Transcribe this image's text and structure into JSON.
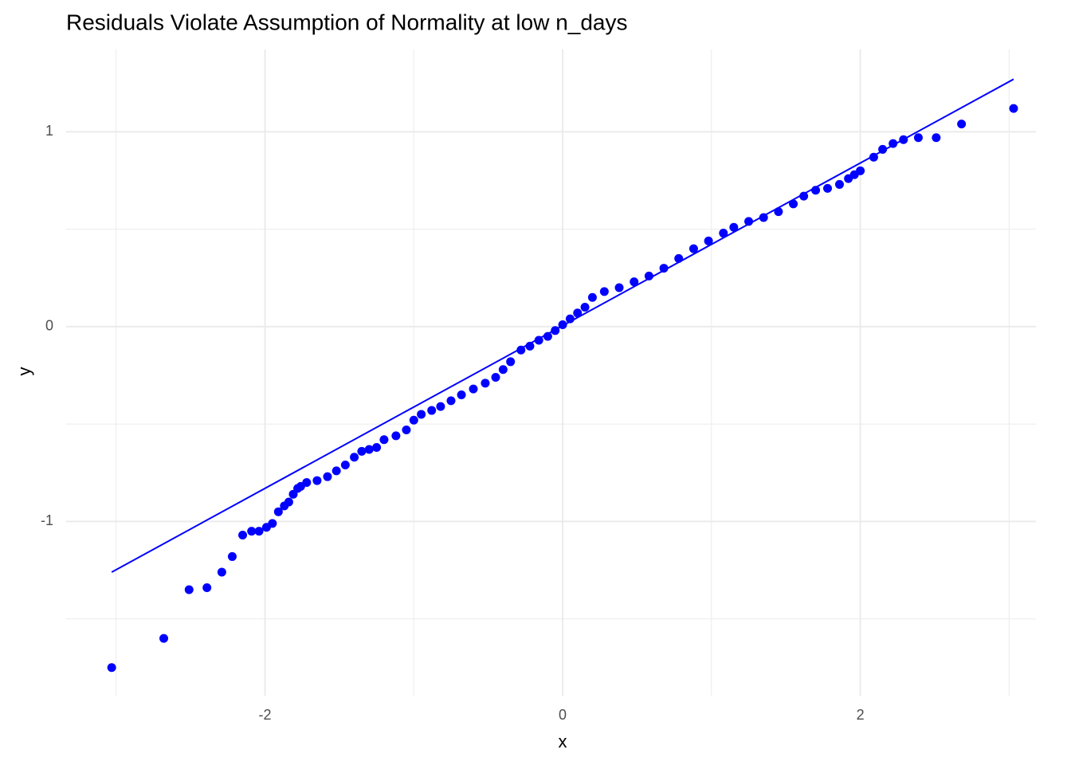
{
  "chart_data": {
    "type": "scatter",
    "title": "Residuals Violate Assumption of Normality at low n_days",
    "x_label": "x",
    "y_label": "y",
    "xlim": [
      -3.336,
      3.18
    ],
    "ylim": [
      -1.894,
      1.423
    ],
    "xticks": [
      -2,
      0,
      2
    ],
    "yticks": [
      -1,
      0,
      1
    ],
    "x_minor_ticks": [
      -3,
      -1,
      1,
      3
    ],
    "y_minor_ticks": [
      -1.5,
      -0.5,
      0.5
    ],
    "grid": true,
    "series": [
      {
        "type": "scatter",
        "color": "#0000ff",
        "x": [
          -3.03,
          -2.68,
          -2.51,
          -2.39,
          -2.29,
          -2.22,
          -2.15,
          -2.09,
          -2.04,
          -1.99,
          -1.95,
          -1.91,
          -1.87,
          -1.84,
          -1.81,
          -1.78,
          -1.76,
          -1.72,
          -1.65,
          -1.58,
          -1.52,
          -1.46,
          -1.4,
          -1.35,
          -1.3,
          -1.25,
          -1.2,
          -1.12,
          -1.05,
          -1.0,
          -0.95,
          -0.88,
          -0.82,
          -0.75,
          -0.68,
          -0.6,
          -0.52,
          -0.45,
          -0.4,
          -0.35,
          -0.28,
          -0.22,
          -0.16,
          -0.1,
          -0.05,
          0,
          0.05,
          0.1,
          0.15,
          0.2,
          0.28,
          0.38,
          0.48,
          0.58,
          0.68,
          0.78,
          0.88,
          0.98,
          1.08,
          1.15,
          1.25,
          1.35,
          1.45,
          1.55,
          1.62,
          1.7,
          1.78,
          1.86,
          1.92,
          1.96,
          2.0,
          2.09,
          2.15,
          2.22,
          2.29,
          2.39,
          2.51,
          2.68,
          3.03
        ],
        "values": [
          -1.75,
          -1.6,
          -1.35,
          -1.34,
          -1.26,
          -1.18,
          -1.07,
          -1.05,
          -1.05,
          -1.03,
          -1.01,
          -0.95,
          -0.92,
          -0.9,
          -0.86,
          -0.83,
          -0.82,
          -0.8,
          -0.79,
          -0.77,
          -0.74,
          -0.71,
          -0.67,
          -0.64,
          -0.63,
          -0.62,
          -0.58,
          -0.56,
          -0.53,
          -0.48,
          -0.45,
          -0.43,
          -0.41,
          -0.38,
          -0.35,
          -0.32,
          -0.29,
          -0.26,
          -0.22,
          -0.18,
          -0.12,
          -0.1,
          -0.07,
          -0.05,
          -0.02,
          0.01,
          0.04,
          0.07,
          0.1,
          0.15,
          0.18,
          0.2,
          0.23,
          0.26,
          0.3,
          0.35,
          0.4,
          0.44,
          0.48,
          0.51,
          0.54,
          0.56,
          0.59,
          0.63,
          0.67,
          0.7,
          0.71,
          0.73,
          0.76,
          0.78,
          0.8,
          0.87,
          0.91,
          0.94,
          0.96,
          0.97,
          0.97,
          1.04,
          1.12
        ]
      },
      {
        "type": "line",
        "color": "#0000ff",
        "x": [
          -3.03,
          3.03
        ],
        "values": [
          -1.26,
          1.27
        ]
      }
    ]
  }
}
